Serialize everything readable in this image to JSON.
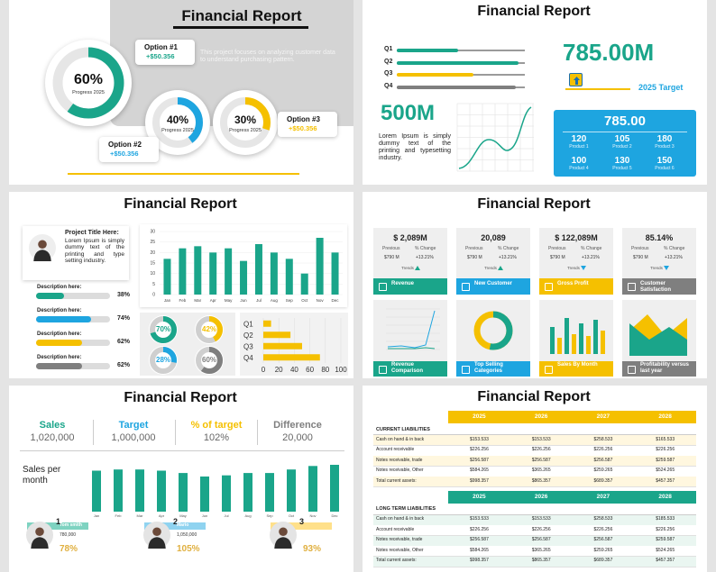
{
  "slides": [
    {
      "title": "Financial Report",
      "description": "This project focuses on analyzing customer data to understand purchasing pattern.",
      "rings": [
        {
          "value": 60,
          "label": "60%",
          "caption": "Progress 2025",
          "color": "#1aa58a"
        },
        {
          "value": 40,
          "label": "40%",
          "caption": "Progress 2025",
          "color": "#1ea5e0"
        },
        {
          "value": 30,
          "label": "30%",
          "caption": "Progress 2025",
          "color": "#f5c000"
        }
      ],
      "options": [
        {
          "name": "Option #1",
          "amount": "+$50.356"
        },
        {
          "name": "Option #2",
          "amount": "+$50.356"
        },
        {
          "name": "Option #3",
          "amount": "+$50.356"
        }
      ]
    },
    {
      "title": "Financial Report",
      "quarters": [
        {
          "label": "Q1",
          "value": 48,
          "color": "#1aa58a"
        },
        {
          "label": "Q2",
          "value": 95,
          "color": "#1aa58a"
        },
        {
          "label": "Q3",
          "value": 60,
          "color": "#f5c000"
        },
        {
          "label": "Q4",
          "value": 93,
          "color": "#7f7f7f"
        }
      ],
      "target_value": "785.00M",
      "target_label": "2025 Target",
      "headline": "500M",
      "text": "Lorem Ipsum is simply dummy text of the printing and typesetting industry.",
      "panel_total": "785.00",
      "products": [
        {
          "value": 120,
          "label": "Product 1"
        },
        {
          "value": 105,
          "label": "Product 2"
        },
        {
          "value": 180,
          "label": "Product 3"
        },
        {
          "value": 100,
          "label": "Product 4"
        },
        {
          "value": 130,
          "label": "Product 5"
        },
        {
          "value": 150,
          "label": "Product 6"
        }
      ]
    },
    {
      "title": "Financial Report",
      "project_title": "Project Title Here:",
      "text": "Lorem Ipsum is simply dummy text of the printing and type setting industry.",
      "descriptions": [
        {
          "label": "Description here:",
          "value": 38,
          "value_label": "38%",
          "color": "#1aa58a"
        },
        {
          "label": "Description here:",
          "value": 74,
          "value_label": "74%",
          "color": "#1ea5e0"
        },
        {
          "label": "Description here:",
          "value": 62,
          "value_label": "62%",
          "color": "#f5c000"
        },
        {
          "label": "Description here:",
          "value": 62,
          "value_label": "62%",
          "color": "#7f7f7f"
        }
      ],
      "monthly": {
        "categories": [
          "Jan",
          "Feb",
          "Mar",
          "Apr",
          "May",
          "Jun",
          "Jul",
          "Aug",
          "Sep",
          "Oct",
          "Nov",
          "Dec"
        ],
        "values": [
          17,
          22,
          23,
          20,
          22,
          16,
          24,
          20,
          17,
          10,
          27,
          20
        ],
        "ylim": [
          0,
          30
        ],
        "yticks": [
          0,
          5,
          10,
          15,
          20,
          25,
          30
        ],
        "color": "#1aa58a"
      },
      "donuts": [
        {
          "value": 70,
          "label": "70%",
          "color": "#1aa58a"
        },
        {
          "value": 42,
          "label": "42%",
          "color": "#f5c000"
        },
        {
          "value": 28,
          "label": "28%",
          "color": "#1ea5e0"
        },
        {
          "value": 60,
          "label": "60%",
          "color": "#7f7f7f"
        }
      ],
      "quarters": {
        "categories": [
          "Q1",
          "Q2",
          "Q3",
          "Q4"
        ],
        "values": [
          10,
          35,
          50,
          73
        ],
        "xlim": [
          0,
          100
        ],
        "xticks": [
          0,
          20,
          40,
          60,
          80,
          100
        ],
        "color": "#f5c000"
      }
    },
    {
      "title": "Financial Report",
      "kpis": [
        {
          "value": "$ 2,089M",
          "previous_label": "Previous",
          "change_label": "% Change",
          "previous": "$790 M",
          "change": "+13.21%",
          "trend_label": "Trends",
          "trend": "up",
          "name": "Revenue",
          "color": "#1aa58a"
        },
        {
          "value": "20,089",
          "previous_label": "Previous",
          "change_label": "% Change",
          "previous": "$790 M",
          "change": "+13.21%",
          "trend_label": "Trends",
          "trend": "up",
          "name": "New Customer",
          "color": "#1ea5e0"
        },
        {
          "value": "$ 122,089M",
          "previous_label": "Previous",
          "change_label": "% Change",
          "previous": "$790 M",
          "change": "+13.21%",
          "trend_label": "Trends",
          "trend": "down",
          "name": "Gross Profit",
          "color": "#f5c000"
        },
        {
          "value": "85.14%",
          "previous_label": "Previous",
          "change_label": "% Change",
          "previous": "$790 M",
          "change": "+13.21%",
          "trend_label": "Trends",
          "trend": "down",
          "name": "Customer Satisfaction",
          "color": "#7f7f7f"
        }
      ],
      "tiles": [
        {
          "name": "Revenue Comparison",
          "color": "#1aa58a"
        },
        {
          "name": "Top Selling Categories",
          "color": "#1ea5e0"
        },
        {
          "name": "Sales By Month",
          "color": "#f5c000"
        },
        {
          "name": "Profitability versus last year",
          "color": "#7f7f7f"
        }
      ]
    },
    {
      "title": "Financial Report",
      "stats": [
        {
          "label": "Sales",
          "value": "1,020,000",
          "color": "#1aa58a"
        },
        {
          "label": "Target",
          "value": "1,000,000",
          "color": "#1ea5e0"
        },
        {
          "label": "% of target",
          "value": "102%",
          "color": "#f5c000"
        },
        {
          "label": "Difference",
          "value": "20,000",
          "color": "#7f7f7f"
        }
      ],
      "chart_label": "Sales per month",
      "monthly": {
        "categories": [
          "Jan",
          "Feb",
          "Mar",
          "Apr",
          "May",
          "Jun",
          "Jul",
          "Aug",
          "Sep",
          "Oct",
          "Nov",
          "Dec"
        ],
        "values": [
          70,
          72,
          72,
          70,
          66,
          60,
          62,
          66,
          66,
          72,
          78,
          80
        ],
        "ylim": [
          0,
          100
        ],
        "color": "#1aa58a"
      },
      "people": [
        {
          "rank": 1,
          "name": "Tom smith",
          "value": "780,000",
          "percent": "78%",
          "color": "#7ed3c1"
        },
        {
          "rank": 2,
          "name": "Mario",
          "value": "1,050,000",
          "percent": "105%",
          "color": "#8fd3f0"
        },
        {
          "rank": 3,
          "percent": "93%",
          "color": "#ffe08a"
        }
      ]
    },
    {
      "title": "Financial Report",
      "years": [
        2025,
        2026,
        2027,
        2028
      ],
      "sections": [
        {
          "heading": "CURRENT LIABILITIES",
          "color": "#f5c000",
          "rows": [
            [
              "Cash on hand & in back",
              "$153.533",
              "$153.533",
              "$258.533",
              "$165.533"
            ],
            [
              "Account receivable",
              "$226.256",
              "$226.256",
              "$226.256",
              "$226.256"
            ],
            [
              "Notes receivable, trade",
              "$256.587",
              "$256.587",
              "$256.587",
              "$259.587"
            ],
            [
              "Notes receivable, Other",
              "$584.265",
              "$365.265",
              "$259.265",
              "$524.265"
            ],
            [
              "Total current assets:",
              "$998.357",
              "$865.357",
              "$689.357",
              "$457.357"
            ]
          ]
        },
        {
          "heading": "LONG TERM LIABILITIES",
          "color": "#1aa58a",
          "rows": [
            [
              "Cash on hand & in back",
              "$153.533",
              "$153.533",
              "$258.533",
              "$185.533"
            ],
            [
              "Account receivable",
              "$226.256",
              "$226.256",
              "$226.256",
              "$226.256"
            ],
            [
              "Notes receivable, trade",
              "$256.587",
              "$256.587",
              "$256.587",
              "$259.587"
            ],
            [
              "Notes receivable, Other",
              "$584.265",
              "$365.265",
              "$259.265",
              "$524.265"
            ],
            [
              "Total current assets:",
              "$998.357",
              "$865.357",
              "$689.357",
              "$457.357"
            ]
          ]
        }
      ]
    }
  ]
}
